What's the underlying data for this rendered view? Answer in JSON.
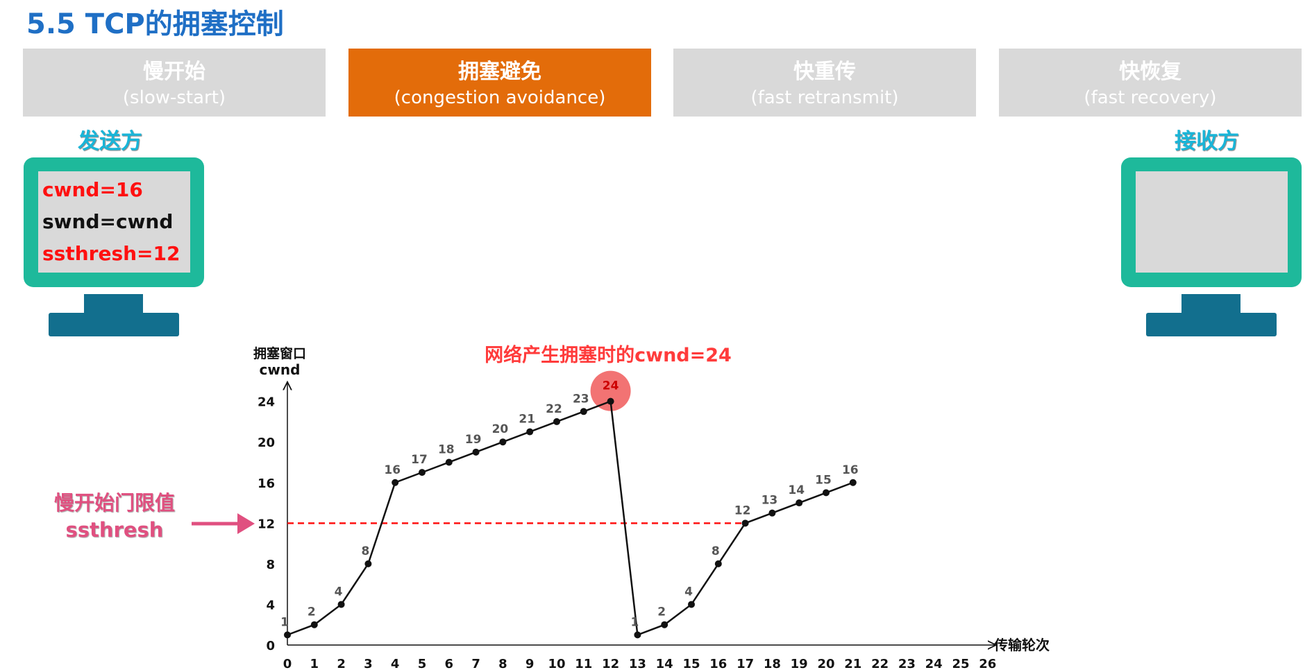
{
  "title": "5.5 TCP的拥塞控制",
  "tabs": [
    {
      "zh": "慢开始",
      "en": "(slow-start)",
      "active": false
    },
    {
      "zh": "拥塞避免",
      "en": "(congestion avoidance)",
      "active": true
    },
    {
      "zh": "快重传",
      "en": "(fast retransmit)",
      "active": false
    },
    {
      "zh": "快恢复",
      "en": "(fast recovery)",
      "active": false
    }
  ],
  "sender": {
    "label": "发送方",
    "cwnd": "cwnd=16",
    "swnd": "swnd=cwnd",
    "ssthresh": "ssthresh=12"
  },
  "receiver": {
    "label": "接收方"
  },
  "ssthresh_label": {
    "zh": "慢开始门限值",
    "en": "ssthresh"
  },
  "colors": {
    "accent": "#e36c0a",
    "title": "#1f6fc5",
    "monitor": "#1eb99b",
    "threshold": "#ff1010"
  },
  "chart_data": {
    "type": "line",
    "ylabel_zh": "拥塞窗口",
    "ylabel": "cwnd",
    "xlabel": "传输轮次",
    "annotation": "网络产生拥塞时的cwnd=24",
    "x_ticks": [
      0,
      1,
      2,
      3,
      4,
      5,
      6,
      7,
      8,
      9,
      10,
      11,
      12,
      13,
      14,
      15,
      16,
      17,
      18,
      19,
      20,
      21,
      22,
      23,
      24,
      25,
      26
    ],
    "y_ticks": [
      0,
      4,
      8,
      12,
      16,
      20,
      24
    ],
    "xlim": [
      0,
      26
    ],
    "ylim": [
      0,
      24
    ],
    "threshold": 12,
    "highlight_point": {
      "x": 12,
      "y": 24,
      "label": "24"
    },
    "series": [
      {
        "x": [
          0,
          1,
          2,
          3,
          4,
          5,
          6,
          7,
          8,
          9,
          10,
          11,
          12,
          13,
          14,
          15,
          16,
          17,
          18,
          19,
          20,
          21
        ],
        "y": [
          1,
          2,
          4,
          8,
          16,
          17,
          18,
          19,
          20,
          21,
          22,
          23,
          24,
          1,
          2,
          4,
          8,
          12,
          13,
          14,
          15,
          16
        ]
      }
    ]
  }
}
